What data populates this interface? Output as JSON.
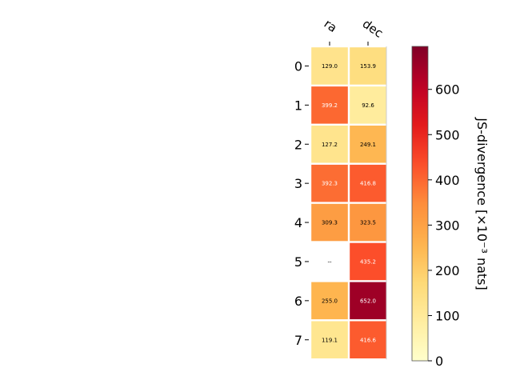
{
  "chart_data": {
    "type": "heatmap",
    "columns": [
      "ra",
      "dec"
    ],
    "rows": [
      "0",
      "1",
      "2",
      "3",
      "4",
      "5",
      "6",
      "7"
    ],
    "values": [
      [
        129.0,
        153.9
      ],
      [
        399.2,
        92.6
      ],
      [
        127.2,
        249.1
      ],
      [
        392.3,
        416.8
      ],
      [
        309.3,
        323.5
      ],
      [
        null,
        435.2
      ],
      [
        255.0,
        652.0
      ],
      [
        119.1,
        416.6
      ]
    ],
    "cell_labels": [
      [
        "129.0",
        "153.9"
      ],
      [
        "399.2",
        "92.6"
      ],
      [
        "127.2",
        "249.1"
      ],
      [
        "392.3",
        "416.8"
      ],
      [
        "309.3",
        "323.5"
      ],
      [
        "--",
        "435.2"
      ],
      [
        "255.0",
        "652.0"
      ],
      [
        "119.1",
        "416.6"
      ]
    ],
    "colorbar": {
      "label": "JS-divergence [×10⁻³ nats]",
      "min": 0,
      "max": 695,
      "ticks": [
        "0",
        "100",
        "200",
        "300",
        "400",
        "500",
        "600"
      ],
      "colormap": "YlOrRd"
    }
  }
}
